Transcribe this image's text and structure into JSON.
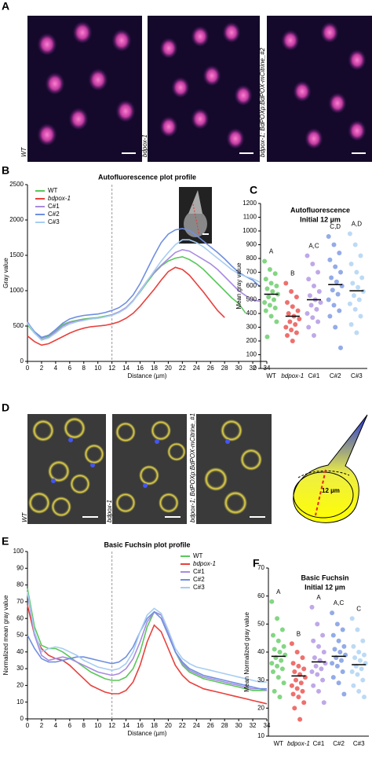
{
  "panels": {
    "A": {
      "letter": "A",
      "labels": [
        "WT",
        "bdpox-1",
        "bdpox-1; BdPOXp:BdPOX-mCitrine_#2"
      ]
    },
    "D": {
      "letter": "D",
      "labels": [
        "WT",
        "bdpox-1",
        "bdpox-1; BdPOXp:BdPOX-mCitrine_#1"
      ],
      "diagram_label": "12 µm"
    }
  },
  "chart_data": [
    {
      "type": "line",
      "panel": "B",
      "title": "Autofluorescence plot profile",
      "xlabel": "Distance (µm)",
      "ylabel": "Gray value",
      "x": [
        0,
        1,
        2,
        3,
        4,
        5,
        6,
        7,
        8,
        9,
        10,
        11,
        12,
        13,
        14,
        15,
        16,
        17,
        18,
        19,
        20,
        21,
        22,
        23,
        24,
        25,
        26,
        27,
        28,
        29,
        30,
        31,
        32,
        33,
        34
      ],
      "xlim": [
        0,
        34
      ],
      "xticks": [
        0,
        2,
        4,
        6,
        8,
        10,
        12,
        14,
        16,
        18,
        20,
        22,
        24,
        26,
        28,
        30,
        32,
        34
      ],
      "ylim": [
        0,
        2500
      ],
      "yticks": [
        0,
        500,
        1000,
        1500,
        2000,
        2500
      ],
      "vline_x": 12,
      "legend": "upper left",
      "series": [
        {
          "name": "WT",
          "color": "#5ac85a",
          "values": [
            520,
            400,
            330,
            360,
            430,
            520,
            560,
            580,
            600,
            610,
            620,
            640,
            660,
            700,
            760,
            860,
            980,
            1120,
            1250,
            1350,
            1420,
            1460,
            1480,
            1440,
            1380,
            1300,
            1200,
            1100,
            1000,
            900,
            820,
            680,
            null,
            null,
            null
          ]
        },
        {
          "name": "bdpox-1",
          "color": "#e8403c",
          "values": [
            360,
            280,
            230,
            250,
            300,
            350,
            400,
            440,
            470,
            490,
            500,
            510,
            530,
            560,
            610,
            680,
            780,
            900,
            1020,
            1150,
            1270,
            1330,
            1300,
            1220,
            1100,
            980,
            850,
            720,
            620,
            null,
            null,
            null,
            null,
            null,
            null
          ]
        },
        {
          "name": "C#1",
          "color": "#a98be0",
          "values": [
            560,
            400,
            310,
            340,
            420,
            500,
            550,
            570,
            590,
            600,
            610,
            630,
            660,
            700,
            760,
            860,
            1000,
            1140,
            1260,
            1360,
            1450,
            1540,
            1580,
            1560,
            1500,
            1440,
            1380,
            1300,
            1200,
            1100,
            1000,
            930,
            870,
            850,
            null
          ]
        },
        {
          "name": "C#2",
          "color": "#6f8fe0",
          "values": [
            550,
            420,
            340,
            370,
            450,
            540,
            600,
            630,
            650,
            660,
            670,
            690,
            720,
            760,
            830,
            940,
            1100,
            1300,
            1500,
            1680,
            1800,
            1860,
            1880,
            1850,
            1780,
            1700,
            1620,
            1540,
            1450,
            1350,
            1260,
            1200,
            1150,
            1060,
            null
          ]
        },
        {
          "name": "C#3",
          "color": "#a6cdf2",
          "values": [
            540,
            400,
            300,
            330,
            400,
            480,
            530,
            560,
            580,
            600,
            610,
            630,
            650,
            690,
            750,
            850,
            990,
            1140,
            1280,
            1420,
            1540,
            1650,
            1720,
            1720,
            1680,
            1620,
            1540,
            1460,
            1380,
            1300,
            1240,
            1200,
            1170,
            1120,
            null
          ]
        }
      ]
    },
    {
      "type": "strip",
      "panel": "C",
      "title": "Autofluorescence",
      "subtitle": "Initial 12 µm",
      "ylabel": "Mean gray value",
      "categories": [
        "WT",
        "bdpox-1",
        "C#1",
        "C#2",
        "C#3"
      ],
      "colors": [
        "#5ac85a",
        "#e8403c",
        "#a98be0",
        "#6f8fe0",
        "#a6cdf2"
      ],
      "ylim": [
        0,
        1200
      ],
      "yticks": [
        0,
        100,
        200,
        300,
        400,
        500,
        600,
        700,
        800,
        900,
        1000,
        1100,
        1200
      ],
      "letters": [
        "A",
        "B",
        "A,C",
        "C,D",
        "A,D"
      ],
      "means": [
        540,
        380,
        500,
        610,
        565
      ],
      "points": [
        [
          780,
          720,
          690,
          650,
          620,
          600,
          580,
          560,
          540,
          520,
          500,
          480,
          460,
          440,
          420,
          380,
          340,
          230
        ],
        [
          620,
          560,
          520,
          480,
          450,
          420,
          400,
          380,
          360,
          340,
          320,
          300,
          280,
          260,
          240,
          200
        ],
        [
          820,
          760,
          700,
          650,
          600,
          560,
          530,
          500,
          480,
          460,
          430,
          400,
          370,
          340,
          300,
          240
        ],
        [
          960,
          900,
          840,
          790,
          740,
          700,
          660,
          630,
          600,
          570,
          540,
          500,
          460,
          420,
          380,
          300,
          150
        ],
        [
          980,
          900,
          820,
          760,
          700,
          660,
          620,
          590,
          560,
          530,
          500,
          470,
          430,
          380,
          320,
          260
        ]
      ]
    },
    {
      "type": "line",
      "panel": "E",
      "title": "Basic Fuchsin plot profile",
      "xlabel": "Distance (µm)",
      "ylabel": "Normalized mean gray value",
      "x": [
        0,
        1,
        2,
        3,
        4,
        5,
        6,
        7,
        8,
        9,
        10,
        11,
        12,
        13,
        14,
        15,
        16,
        17,
        18,
        19,
        20,
        21,
        22,
        23,
        24,
        25,
        26,
        27,
        28,
        29,
        30,
        31,
        32,
        33,
        34
      ],
      "xlim": [
        0,
        34
      ],
      "xticks": [
        0,
        2,
        4,
        6,
        8,
        10,
        12,
        14,
        16,
        18,
        20,
        22,
        24,
        26,
        28,
        30,
        32,
        34
      ],
      "ylim": [
        0,
        100
      ],
      "yticks": [
        0,
        10,
        20,
        30,
        40,
        50,
        60,
        70,
        80,
        90,
        100
      ],
      "vline_x": 12,
      "legend": "upper right",
      "series": [
        {
          "name": "WT",
          "color": "#5ac85a",
          "values": [
            78,
            55,
            44,
            42,
            42,
            40,
            37,
            34,
            31,
            28,
            26,
            24,
            23,
            23,
            25,
            30,
            40,
            55,
            64,
            62,
            52,
            40,
            32,
            28,
            26,
            24,
            23,
            22,
            21,
            20,
            19,
            18,
            17,
            17,
            17
          ]
        },
        {
          "name": "bdpox-1",
          "color": "#e8403c",
          "values": [
            68,
            50,
            42,
            38,
            36,
            35,
            32,
            28,
            24,
            20,
            18,
            16,
            15,
            15,
            17,
            22,
            32,
            46,
            56,
            52,
            42,
            32,
            26,
            22,
            20,
            18,
            17,
            16,
            15,
            14,
            13,
            12,
            11,
            10,
            9
          ]
        },
        {
          "name": "C#1",
          "color": "#a98be0",
          "values": [
            75,
            50,
            38,
            35,
            36,
            37,
            36,
            34,
            32,
            30,
            28,
            27,
            26,
            27,
            30,
            36,
            46,
            58,
            64,
            62,
            52,
            40,
            33,
            29,
            27,
            25,
            24,
            23,
            22,
            21,
            20,
            19,
            18,
            18,
            17
          ]
        },
        {
          "name": "C#2",
          "color": "#6f8fe0",
          "values": [
            50,
            42,
            36,
            34,
            34,
            35,
            36,
            37,
            37,
            36,
            35,
            34,
            33,
            34,
            37,
            43,
            52,
            60,
            64,
            60,
            50,
            40,
            34,
            30,
            28,
            26,
            25,
            24,
            23,
            22,
            21,
            20,
            19,
            18,
            18
          ]
        },
        {
          "name": "C#3",
          "color": "#a6cdf2",
          "values": [
            76,
            52,
            40,
            42,
            43,
            42,
            40,
            38,
            35,
            33,
            31,
            30,
            29,
            30,
            33,
            40,
            52,
            62,
            66,
            63,
            53,
            42,
            36,
            33,
            31,
            30,
            29,
            28,
            27,
            26,
            25,
            24,
            23,
            22,
            22
          ]
        }
      ]
    },
    {
      "type": "strip",
      "panel": "F",
      "title": "Basic Fuchsin",
      "subtitle": "Initial 12 µm",
      "ylabel": "Mean Normalized gray value",
      "categories": [
        "WT",
        "bdpox-1",
        "C#1",
        "C#2",
        "C#3"
      ],
      "colors": [
        "#5ac85a",
        "#e8403c",
        "#a98be0",
        "#6f8fe0",
        "#a6cdf2"
      ],
      "ylim": [
        10,
        70
      ],
      "yticks": [
        10,
        20,
        30,
        40,
        50,
        60,
        70
      ],
      "letters": [
        "A",
        "B",
        "A",
        "A,C",
        "C"
      ],
      "means": [
        38.5,
        31.5,
        36.5,
        38.5,
        35.5
      ],
      "points": [
        [
          58,
          52,
          48,
          46,
          44,
          42,
          41,
          40,
          39,
          38,
          37,
          36,
          35,
          34,
          33,
          31,
          29,
          26,
          24
        ],
        [
          43,
          40,
          38,
          36,
          35,
          34,
          33,
          32,
          31,
          30,
          29,
          28,
          27,
          26,
          25,
          24,
          22,
          20,
          16
        ],
        [
          56,
          50,
          46,
          44,
          42,
          40,
          38,
          37,
          36,
          35,
          34,
          33,
          32,
          30,
          28,
          26,
          22
        ],
        [
          54,
          50,
          48,
          46,
          44,
          42,
          41,
          40,
          39,
          38,
          37,
          36,
          35,
          33,
          31,
          29,
          25
        ],
        [
          52,
          48,
          44,
          42,
          40,
          39,
          38,
          37,
          36,
          35,
          34,
          33,
          32,
          30,
          28,
          26,
          24
        ]
      ]
    }
  ]
}
